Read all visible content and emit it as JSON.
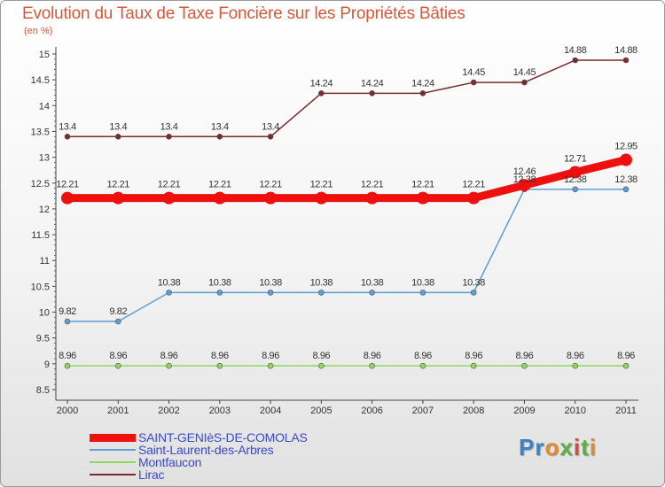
{
  "title": "Evolution du Taux de Taxe Foncière sur les Propriétés Bâties",
  "unit": "(en %)",
  "logo": {
    "text": "Proxiti",
    "colors": [
      "#3b83c8",
      "#e48a2a",
      "#5bb040",
      "#d8483b"
    ]
  },
  "chart_data": {
    "type": "line",
    "title": "Evolution du Taux de Taxe Foncière sur les Propriétés Bâties",
    "ylabel": "(en %)",
    "xlabel": "",
    "x": [
      "2000",
      "2001",
      "2002",
      "2003",
      "2004",
      "2005",
      "2006",
      "2007",
      "2008",
      "2009",
      "2010",
      "2011"
    ],
    "ylim": [
      8.5,
      15
    ],
    "yticks": [
      "8.5",
      "9",
      "9.5",
      "10",
      "10.5",
      "11",
      "11.5",
      "12",
      "12.5",
      "13",
      "13.5",
      "14",
      "14.5",
      "15"
    ],
    "grid": false,
    "legend": "bottom-left",
    "series": [
      {
        "name": "SAINT-GENIèS-DE-COMOLAS",
        "color": "#ee0f0f",
        "emphasis": true,
        "values": [
          12.21,
          12.21,
          12.21,
          12.21,
          12.21,
          12.21,
          12.21,
          12.21,
          12.21,
          12.46,
          12.71,
          12.95
        ],
        "labels": [
          "12.21",
          "12.21",
          "12.21",
          "12.21",
          "12.21",
          "12.21",
          "12.21",
          "12.21",
          "12.21",
          "12.46",
          "12.71",
          "12.95"
        ]
      },
      {
        "name": "Saint-Laurent-des-Arbres",
        "color": "#5f9dd2",
        "emphasis": false,
        "values": [
          9.82,
          9.82,
          10.38,
          10.38,
          10.38,
          10.38,
          10.38,
          10.38,
          10.38,
          12.38,
          12.38,
          12.38
        ],
        "labels": [
          "9.82",
          "9.82",
          "10.38",
          "10.38",
          "10.38",
          "10.38",
          "10.38",
          "10.38",
          "10.38",
          "12.38",
          "12.38",
          "12.38"
        ]
      },
      {
        "name": "Montfaucon",
        "color": "#8ed65c",
        "emphasis": false,
        "values": [
          8.96,
          8.96,
          8.96,
          8.96,
          8.96,
          8.96,
          8.96,
          8.96,
          8.96,
          8.96,
          8.96,
          8.96
        ],
        "labels": [
          "8.96",
          "8.96",
          "8.96",
          "8.96",
          "8.96",
          "8.96",
          "8.96",
          "8.96",
          "8.96",
          "8.96",
          "8.96",
          "8.96"
        ]
      },
      {
        "name": "Lirac",
        "color": "#7b2a2a",
        "emphasis": false,
        "values": [
          13.4,
          13.4,
          13.4,
          13.4,
          13.4,
          14.24,
          14.24,
          14.24,
          14.45,
          14.45,
          14.88,
          14.88
        ],
        "labels": [
          "13.4",
          "13.4",
          "13.4",
          "13.4",
          "13.4",
          "14.24",
          "14.24",
          "14.24",
          "14.45",
          "14.45",
          "14.88",
          "14.88"
        ]
      }
    ]
  }
}
